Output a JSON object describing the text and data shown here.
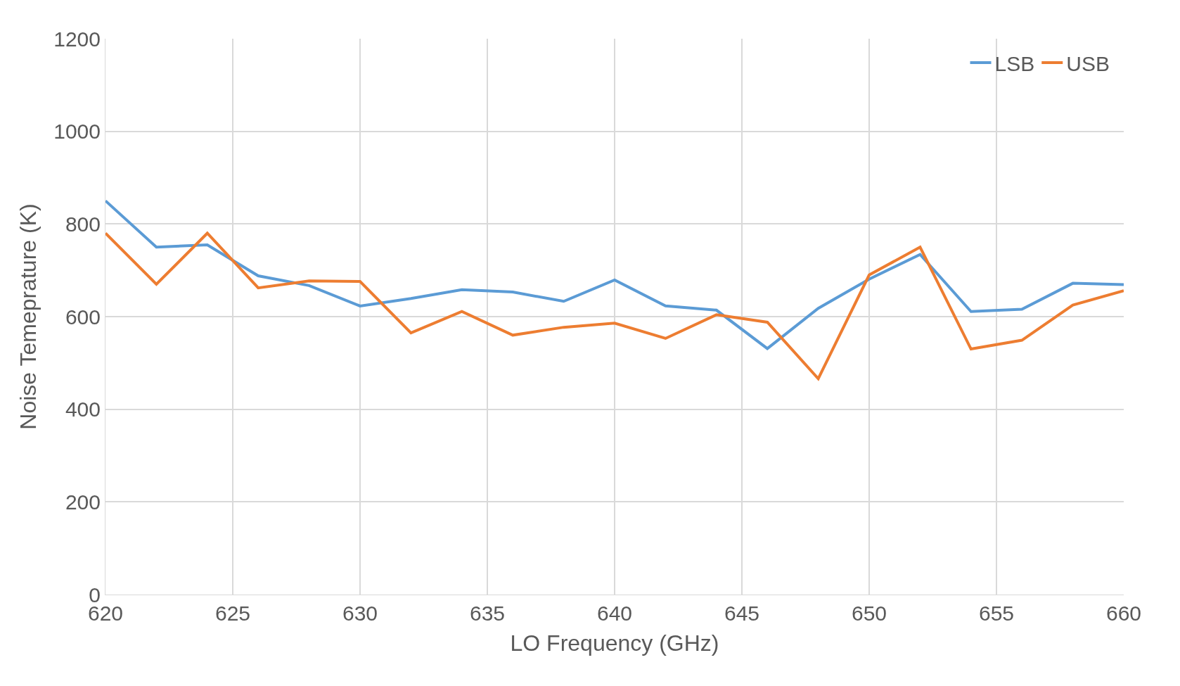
{
  "chart_data": {
    "type": "line",
    "xlabel": "LO Frequency (GHz)",
    "ylabel": "Noise Temeprature (K)",
    "x": [
      620,
      622,
      624,
      626,
      628,
      630,
      632,
      634,
      636,
      638,
      640,
      642,
      644,
      646,
      648,
      650,
      652,
      654,
      656,
      658,
      660
    ],
    "series": [
      {
        "name": "LSB",
        "color": "#5b9bd5",
        "values": [
          850,
          750,
          755,
          688,
          667,
          623,
          639,
          658,
          653,
          633,
          679,
          623,
          614,
          531,
          618,
          681,
          734,
          611,
          616,
          672,
          669
        ]
      },
      {
        "name": "USB",
        "color": "#ed7d31",
        "values": [
          780,
          670,
          780,
          662,
          677,
          676,
          565,
          611,
          560,
          577,
          586,
          553,
          604,
          588,
          466,
          690,
          750,
          530,
          549,
          625,
          656
        ]
      }
    ],
    "xlim": [
      620,
      660
    ],
    "xticks": [
      620,
      625,
      630,
      635,
      640,
      645,
      650,
      655,
      660
    ],
    "ylim": [
      0,
      1200
    ],
    "yticks": [
      0,
      200,
      400,
      600,
      800,
      1000,
      1200
    ],
    "grid": true,
    "legend": "top right",
    "marker": "none",
    "line_style": "solid"
  }
}
